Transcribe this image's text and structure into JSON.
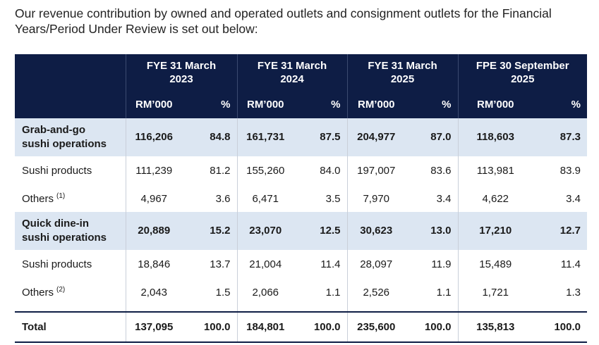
{
  "intro": "Our revenue contribution by owned and operated outlets and consignment outlets for the Financial Years/Period Under Review is set out below:",
  "periods": [
    {
      "line1": "FYE 31 March",
      "line2": "2023"
    },
    {
      "line1": "FYE 31 March",
      "line2": "2024"
    },
    {
      "line1": "FYE 31 March",
      "line2": "2025"
    },
    {
      "line1": "FPE 30 September",
      "line2": "2025"
    }
  ],
  "units": {
    "rm": "RM’000",
    "pct": "%"
  },
  "rows": [
    {
      "type": "segment",
      "label_line1": "Grab-and-go",
      "label_line2": "sushi operations",
      "values": [
        "116,206",
        "84.8",
        "161,731",
        "87.5",
        "204,977",
        "87.0",
        "118,603",
        "87.3"
      ]
    },
    {
      "type": "sub",
      "label": "Sushi products",
      "note": "",
      "values": [
        "111,239",
        "81.2",
        "155,260",
        "84.0",
        "197,007",
        "83.6",
        "113,981",
        "83.9"
      ]
    },
    {
      "type": "sub",
      "label": "Others",
      "note": "(1)",
      "values": [
        "4,967",
        "3.6",
        "6,471",
        "3.5",
        "7,970",
        "3.4",
        "4,622",
        "3.4"
      ]
    },
    {
      "type": "segment",
      "label_line1": "Quick dine-in",
      "label_line2": "sushi operations",
      "values": [
        "20,889",
        "15.2",
        "23,070",
        "12.5",
        "30,623",
        "13.0",
        "17,210",
        "12.7"
      ]
    },
    {
      "type": "sub",
      "label": "Sushi products",
      "note": "",
      "values": [
        "18,846",
        "13.7",
        "21,004",
        "11.4",
        "28,097",
        "11.9",
        "15,489",
        "11.4"
      ]
    },
    {
      "type": "sub",
      "label": "Others",
      "note": "(2)",
      "values": [
        "2,043",
        "1.5",
        "2,066",
        "1.1",
        "2,526",
        "1.1",
        "1,721",
        "1.3"
      ]
    }
  ],
  "total": {
    "label": "Total",
    "values": [
      "137,095",
      "100.0",
      "184,801",
      "100.0",
      "235,600",
      "100.0",
      "135,813",
      "100.0"
    ]
  }
}
